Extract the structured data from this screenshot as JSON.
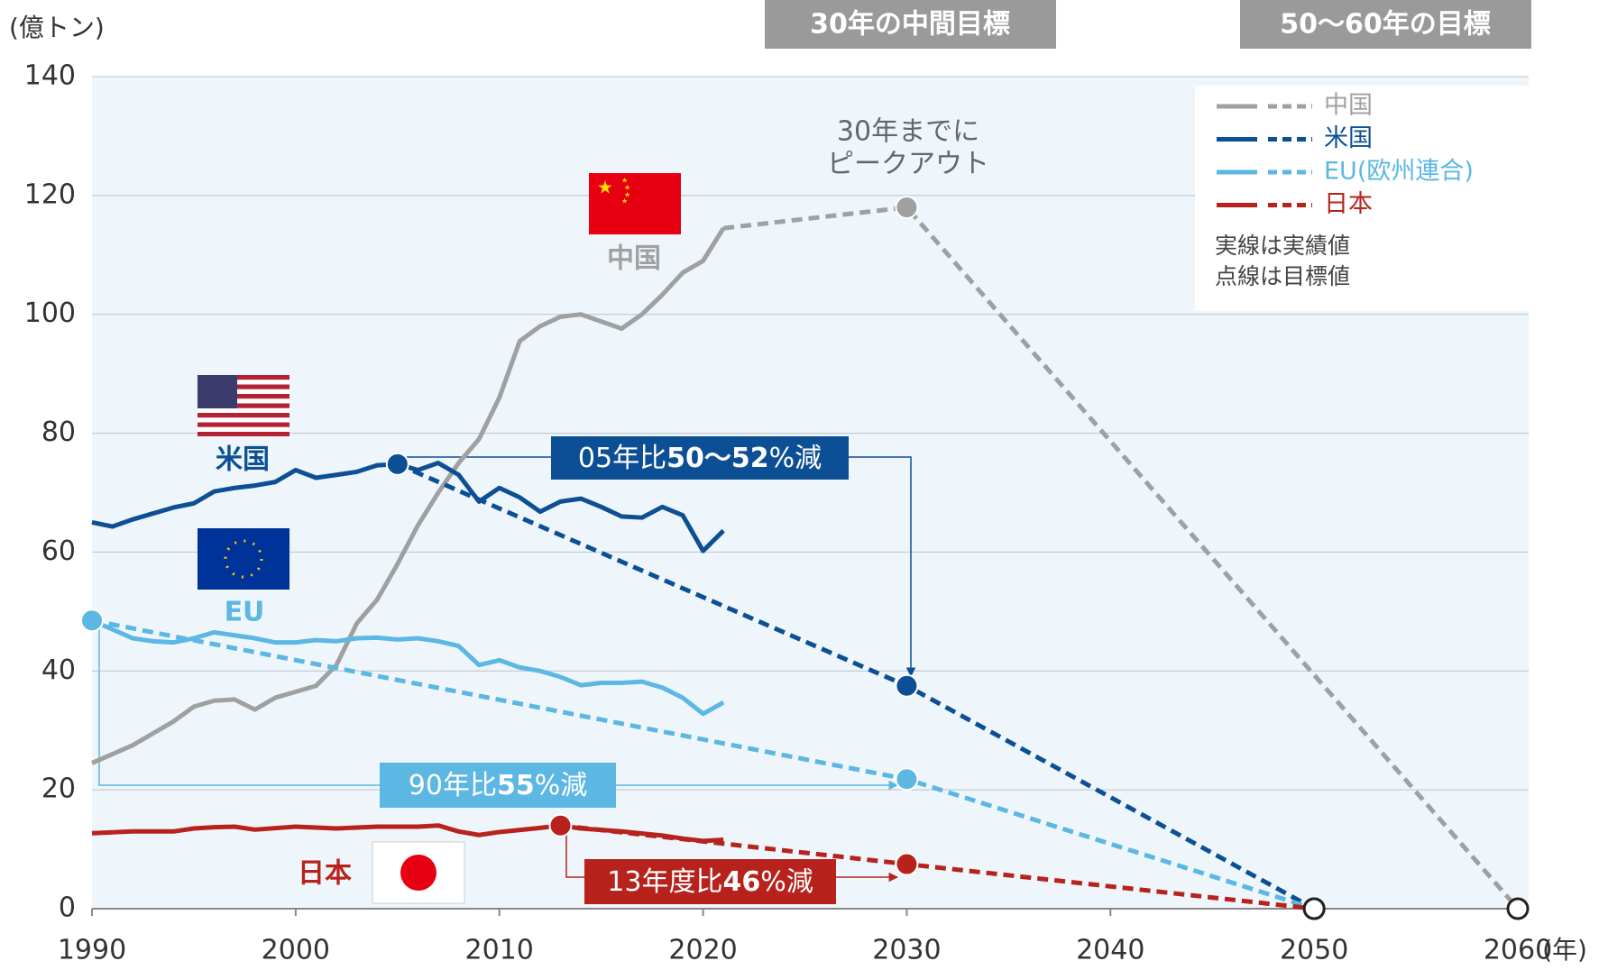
{
  "chart_data": {
    "type": "line",
    "y_unit_label": "(億トン)",
    "x_unit_label": "(年)",
    "xlim": [
      1990,
      2060
    ],
    "ylim": [
      0,
      140
    ],
    "xticks": [
      1990,
      2000,
      2010,
      2020,
      2030,
      2040,
      2050,
      2060
    ],
    "yticks": [
      0,
      20,
      40,
      60,
      80,
      100,
      120,
      140
    ],
    "grid": true,
    "headers": [
      "30年の中間目標",
      "50～60年の目標"
    ],
    "peak_note": [
      "30年までに",
      "ピークアウト"
    ],
    "legend_notes": [
      "実線は実績値",
      "点線は目標値"
    ],
    "series": [
      {
        "name": "中国",
        "color": "#a0a0a0",
        "x": [
          1990,
          1991,
          1992,
          1993,
          1994,
          1995,
          1996,
          1997,
          1998,
          1999,
          2000,
          2001,
          2002,
          2003,
          2004,
          2005,
          2006,
          2007,
          2008,
          2009,
          2010,
          2011,
          2012,
          2013,
          2014,
          2015,
          2016,
          2017,
          2018,
          2019,
          2020,
          2021
        ],
        "values": [
          24.5,
          26,
          27.5,
          29.5,
          31.5,
          34,
          35,
          35.2,
          33.5,
          35.5,
          36.5,
          37.5,
          41,
          48,
          52,
          58,
          64.5,
          70,
          75,
          79,
          86,
          95.5,
          98,
          99.6,
          100,
          98.8,
          97.6,
          100,
          103.3,
          107,
          109,
          114.5
        ],
        "target": {
          "x": [
            2021,
            2030,
            2060
          ],
          "values": [
            114.5,
            118,
            0
          ]
        }
      },
      {
        "name": "米国",
        "color": "#0d4f94",
        "x": [
          1990,
          1991,
          1992,
          1993,
          1994,
          1995,
          1996,
          1997,
          1998,
          1999,
          2000,
          2001,
          2002,
          2003,
          2004,
          2005,
          2006,
          2007,
          2008,
          2009,
          2010,
          2011,
          2012,
          2013,
          2014,
          2015,
          2016,
          2017,
          2018,
          2019,
          2020,
          2021
        ],
        "values": [
          65,
          64.3,
          65.5,
          66.5,
          67.5,
          68.2,
          70.2,
          70.8,
          71.2,
          71.8,
          73.8,
          72.5,
          73,
          73.5,
          74.6,
          74.8,
          73.8,
          75,
          73,
          68.5,
          70.8,
          69.2,
          66.8,
          68.5,
          69,
          67.6,
          66,
          65.8,
          67.6,
          66.2,
          60.2,
          63.6
        ],
        "target": {
          "x": [
            2005,
            2030,
            2050
          ],
          "values": [
            74.8,
            37.5,
            0
          ]
        }
      },
      {
        "name": "EU(欧州連合)",
        "color": "#5cb7e3",
        "x": [
          1990,
          1991,
          1992,
          1993,
          1994,
          1995,
          1996,
          1997,
          1998,
          1999,
          2000,
          2001,
          2002,
          2003,
          2004,
          2005,
          2006,
          2007,
          2008,
          2009,
          2010,
          2011,
          2012,
          2013,
          2014,
          2015,
          2016,
          2017,
          2018,
          2019,
          2020,
          2021
        ],
        "values": [
          48.5,
          47,
          45.5,
          45,
          44.8,
          45.5,
          46.5,
          46,
          45.5,
          44.8,
          44.8,
          45.2,
          45,
          45.5,
          45.6,
          45.3,
          45.5,
          45,
          44.2,
          41,
          41.8,
          40.6,
          40,
          39,
          37.6,
          38,
          38,
          38.2,
          37.2,
          35.5,
          32.8,
          34.7
        ],
        "target": {
          "x": [
            1990,
            2030,
            2050
          ],
          "values": [
            48.5,
            21.8,
            0
          ]
        }
      },
      {
        "name": "日本",
        "color": "#b7231c",
        "x": [
          1990,
          1992,
          1994,
          1995,
          1996,
          1997,
          1998,
          2000,
          2002,
          2004,
          2006,
          2007,
          2008,
          2009,
          2010,
          2012,
          2013,
          2014,
          2016,
          2018,
          2019,
          2020,
          2021
        ],
        "values": [
          12.7,
          13,
          13,
          13.5,
          13.7,
          13.8,
          13.3,
          13.8,
          13.5,
          13.8,
          13.8,
          14,
          13,
          12.4,
          12.9,
          13.6,
          14,
          13.5,
          13,
          12.3,
          11.8,
          11.4,
          11.6
        ],
        "target": {
          "x": [
            2013,
            2030,
            2050
          ],
          "values": [
            14,
            7.5,
            0
          ]
        }
      }
    ],
    "flag_labels": [
      {
        "series": 0,
        "text": "中国"
      },
      {
        "series": 1,
        "text": "米国"
      },
      {
        "series": 2,
        "text": "EU"
      },
      {
        "series": 3,
        "text": "日本"
      }
    ],
    "callouts": [
      {
        "series": 1,
        "parts": [
          {
            "text": "05年比"
          },
          {
            "text": "50～52",
            "bold": true
          },
          {
            "text": "%減"
          }
        ]
      },
      {
        "series": 2,
        "parts": [
          {
            "text": "90年比"
          },
          {
            "text": "55",
            "bold": true
          },
          {
            "text": "%減"
          }
        ]
      },
      {
        "series": 3,
        "parts": [
          {
            "text": "13年度比"
          },
          {
            "text": "46",
            "bold": true
          },
          {
            "text": "%減"
          }
        ]
      }
    ]
  }
}
